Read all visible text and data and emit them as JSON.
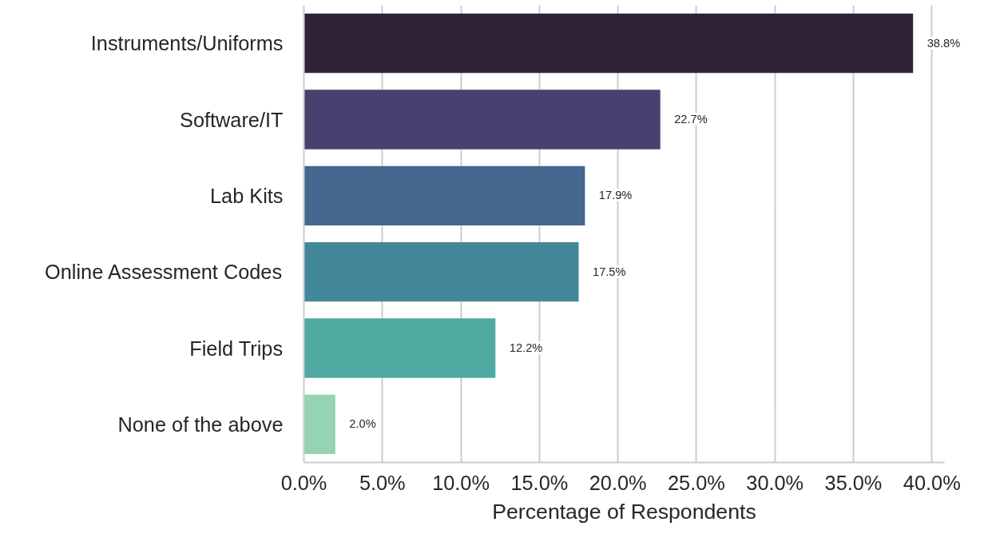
{
  "chart_data": {
    "type": "bar",
    "orientation": "horizontal",
    "xlabel": "Percentage of Respondents",
    "categories": [
      "Instruments/Uniforms",
      "Software/IT",
      "Lab Kits",
      "Online Assessment Codes",
      "Field Trips",
      "None of the above"
    ],
    "values": [
      38.8,
      22.7,
      17.9,
      17.5,
      12.2,
      2.0
    ],
    "colors": [
      "#2f2338",
      "#48416f",
      "#44668f",
      "#42879a",
      "#50aaa1",
      "#95d3b2"
    ],
    "value_labels": [
      "38.8%",
      "22.7%",
      "17.9%",
      "17.5%",
      "12.2%",
      "2.0%"
    ],
    "xlim": [
      0,
      40.8
    ],
    "xticks": [
      {
        "value": 0,
        "label": "0.0%"
      },
      {
        "value": 5,
        "label": "5.0%"
      },
      {
        "value": 10,
        "label": "10.0%"
      },
      {
        "value": 15,
        "label": "15.0%"
      },
      {
        "value": 20,
        "label": "20.0%"
      },
      {
        "value": 25,
        "label": "25.0%"
      },
      {
        "value": 30,
        "label": "30.0%"
      },
      {
        "value": 35,
        "label": "35.0%"
      },
      {
        "value": 40,
        "label": "40.0%"
      }
    ],
    "grid": "x"
  }
}
